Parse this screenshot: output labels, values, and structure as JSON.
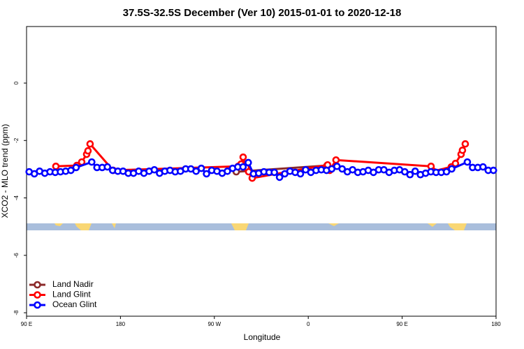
{
  "chart_data": {
    "type": "line",
    "title": "37.5S-32.5S December (Ver 10)   2015-01-01 to 2020-12-18",
    "x_label": "Longitude",
    "y_label": "XCO2 - MLO trend (ppm)",
    "xlim": [
      90,
      540
    ],
    "xticks": [
      {
        "value": 90,
        "label": "90 E"
      },
      180,
      {
        "value": 270,
        "label": "90 W"
      },
      {
        "value": 360,
        "label": "0"
      },
      {
        "value": 450,
        "label": "90 E"
      },
      {
        "value": 540,
        "label": "180"
      }
    ],
    "ylim": [
      -8.12,
      1.97
    ],
    "yticks": [
      -8,
      -6,
      -4,
      -2,
      0
    ],
    "legend": "bottom-left",
    "series": [
      {
        "name": "Land Nadir",
        "color": "#8b2a2a",
        "x": [
          291,
          378
        ],
        "values": [
          -3.09,
          -2.87
        ]
      },
      {
        "name": "Land Glint",
        "color": "#ff0000",
        "x": [
          118.1,
          138.2,
          142.9,
          147.6,
          148.9,
          150.9,
          173.0,
          292.9,
          295.6,
          297.6,
          300.3,
          302.9,
          306.3,
          378.6,
          380.6,
          386.6,
          477.7,
          479.7,
          497.1,
          501.1,
          506.5,
          507.8,
          510.5
        ],
        "values": [
          -2.9,
          -2.87,
          -2.75,
          -2.48,
          -2.36,
          -2.12,
          -3.04,
          -2.9,
          -2.82,
          -2.58,
          -2.94,
          -3.09,
          -3.31,
          -2.85,
          -3.04,
          -2.68,
          -2.9,
          -3.07,
          -2.92,
          -2.8,
          -2.48,
          -2.34,
          -2.12
        ]
      },
      {
        "name": "Ocean Glint",
        "color": "#0000ff",
        "x": [
          92.5,
          97.5,
          102.5,
          107.5,
          112.5,
          117.5,
          122.5,
          127.5,
          132.5,
          137.5,
          152.5,
          157.5,
          162.5,
          167.5,
          172.5,
          177.5,
          182.5,
          187.5,
          192.5,
          197.5,
          202.5,
          207.5,
          212.5,
          217.5,
          222.5,
          227.5,
          232.5,
          237.5,
          242.5,
          247.5,
          252.5,
          257.5,
          262.5,
          267.5,
          272.5,
          277.5,
          282.5,
          287.5,
          292.5,
          297.5,
          302.5,
          307.5,
          312.5,
          317.5,
          322.5,
          327.5,
          332.5,
          337.5,
          342.5,
          347.5,
          352.5,
          357.5,
          362.5,
          367.5,
          372.5,
          377.5,
          382.5,
          387.5,
          392.5,
          397.5,
          402.5,
          407.5,
          412.5,
          417.5,
          422.5,
          427.5,
          432.5,
          437.5,
          442.5,
          447.5,
          452.5,
          457.5,
          462.5,
          467.5,
          472.5,
          477.5,
          482.5,
          487.5,
          492.5,
          497.5,
          512.5,
          517.5,
          522.5,
          527.5,
          532.5,
          537.5
        ],
        "values": [
          -3.09,
          -3.16,
          -3.07,
          -3.14,
          -3.09,
          -3.11,
          -3.09,
          -3.07,
          -3.04,
          -2.94,
          -2.75,
          -2.94,
          -2.94,
          -2.92,
          -3.04,
          -3.07,
          -3.07,
          -3.14,
          -3.14,
          -3.07,
          -3.14,
          -3.07,
          -3.02,
          -3.14,
          -3.07,
          -3.04,
          -3.09,
          -3.07,
          -2.99,
          -2.99,
          -3.07,
          -2.97,
          -3.16,
          -3.04,
          -3.07,
          -3.14,
          -3.07,
          -2.97,
          -2.92,
          -2.92,
          -2.77,
          -3.16,
          -3.14,
          -3.09,
          -3.11,
          -3.11,
          -3.28,
          -3.16,
          -3.07,
          -3.11,
          -3.16,
          -3.02,
          -3.11,
          -3.04,
          -3.02,
          -3.04,
          -2.99,
          -2.9,
          -2.99,
          -3.09,
          -3.02,
          -3.11,
          -3.09,
          -3.04,
          -3.11,
          -3.02,
          -3.02,
          -3.11,
          -3.04,
          -3.02,
          -3.09,
          -3.19,
          -3.07,
          -3.19,
          -3.14,
          -3.09,
          -3.11,
          -3.11,
          -3.09,
          -2.99,
          -2.75,
          -2.94,
          -2.94,
          -2.92,
          -3.04,
          -3.04
        ]
      }
    ]
  }
}
